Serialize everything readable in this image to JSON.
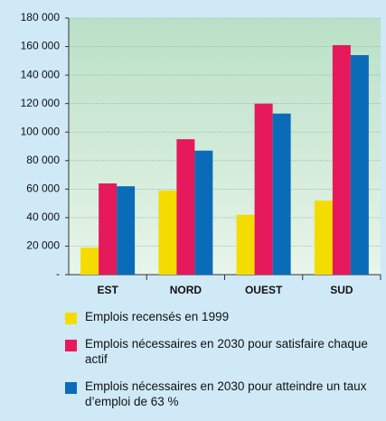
{
  "chart_data": {
    "type": "bar",
    "categories": [
      "EST",
      "NORD",
      "OUEST",
      "SUD"
    ],
    "series": [
      {
        "name": "Emplois recensés en 1999",
        "color": "#f4dc00",
        "values": [
          19000,
          59000,
          42000,
          52000
        ]
      },
      {
        "name": "Emplois nécessaires en 2030 pour satisfaire chaque actif",
        "color": "#e5195b",
        "values": [
          64000,
          95000,
          120000,
          161000
        ]
      },
      {
        "name": "Emplois nécessaires en 2030 pour atteindre un taux d’emploi de 63 %",
        "color": "#0a6cb8",
        "values": [
          62000,
          87000,
          113000,
          154000
        ]
      }
    ],
    "ylim": [
      0,
      180000
    ],
    "yticks": [
      {
        "value": 0,
        "label": "-"
      },
      {
        "value": 20000,
        "label": "20 000"
      },
      {
        "value": 40000,
        "label": "40 000"
      },
      {
        "value": 60000,
        "label": "60 000"
      },
      {
        "value": 80000,
        "label": "80 000"
      },
      {
        "value": 100000,
        "label": "100 000"
      },
      {
        "value": 120000,
        "label": "120 000"
      },
      {
        "value": 140000,
        "label": "140 000"
      },
      {
        "value": 160000,
        "label": "160 000"
      },
      {
        "value": 180000,
        "label": "180 000"
      }
    ],
    "grid": true
  }
}
